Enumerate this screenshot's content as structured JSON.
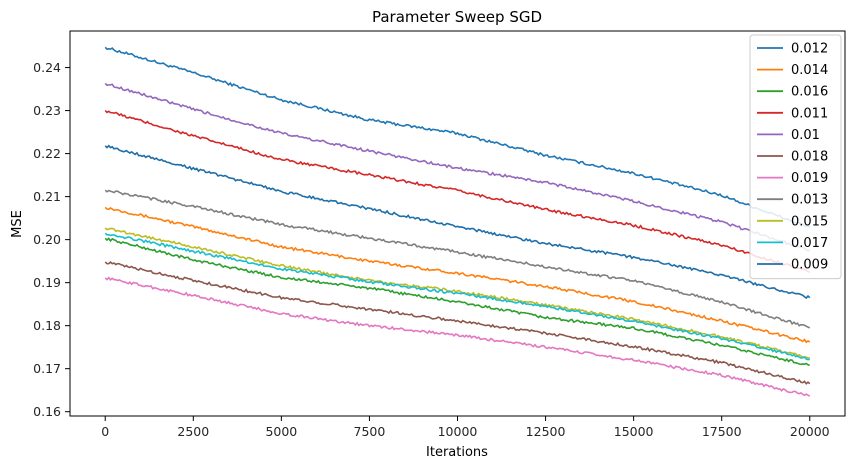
{
  "chart_data": {
    "type": "line",
    "title": "Parameter Sweep SGD",
    "xlabel": "Iterations",
    "ylabel": "MSE",
    "xlim": [
      -1000,
      21000
    ],
    "ylim": [
      0.159,
      0.2485
    ],
    "x_ticks": [
      "0",
      "2500",
      "5000",
      "7500",
      "10000",
      "12500",
      "15000",
      "17500",
      "20000"
    ],
    "y_ticks": [
      "0.16",
      "0.17",
      "0.18",
      "0.19",
      "0.20",
      "0.21",
      "0.22",
      "0.23",
      "0.24"
    ],
    "x": [
      0,
      2500,
      5000,
      7500,
      10000,
      12500,
      15000,
      17500,
      20000
    ],
    "legend_position": "upper right",
    "series": [
      {
        "name": "0.012",
        "color": "#1f77b4",
        "values": [
          0.2447,
          0.2388,
          0.2325,
          0.2278,
          0.2247,
          0.2196,
          0.2154,
          0.2103,
          0.2028
        ]
      },
      {
        "name": "0.014",
        "color": "#ff7f0e",
        "values": [
          0.2075,
          0.203,
          0.1983,
          0.195,
          0.1922,
          0.1891,
          0.1856,
          0.1811,
          0.1762
        ]
      },
      {
        "name": "0.016",
        "color": "#2ca02c",
        "values": [
          0.2003,
          0.1953,
          0.1912,
          0.1887,
          0.1855,
          0.1819,
          0.1794,
          0.1754,
          0.1708
        ]
      },
      {
        "name": "0.011",
        "color": "#d62728",
        "values": [
          0.23,
          0.2241,
          0.2186,
          0.215,
          0.2114,
          0.207,
          0.2033,
          0.1987,
          0.1925
        ]
      },
      {
        "name": "0.01",
        "color": "#9467bd",
        "values": [
          0.2363,
          0.2303,
          0.2247,
          0.2206,
          0.2166,
          0.2133,
          0.2089,
          0.2041,
          0.1975
        ]
      },
      {
        "name": "0.018",
        "color": "#8c564b",
        "values": [
          0.1948,
          0.1905,
          0.1865,
          0.1838,
          0.1811,
          0.1783,
          0.1751,
          0.1714,
          0.1665
        ]
      },
      {
        "name": "0.019",
        "color": "#e377c2",
        "values": [
          0.1911,
          0.187,
          0.1828,
          0.18,
          0.1778,
          0.175,
          0.172,
          0.1685,
          0.1636
        ]
      },
      {
        "name": "0.013",
        "color": "#7f7f7f",
        "values": [
          0.2115,
          0.2077,
          0.2035,
          0.2003,
          0.1971,
          0.1937,
          0.1904,
          0.1855,
          0.1795
        ]
      },
      {
        "name": "0.015",
        "color": "#bcbd22",
        "values": [
          0.2027,
          0.1983,
          0.1939,
          0.1905,
          0.188,
          0.1848,
          0.1815,
          0.1774,
          0.1725
        ]
      },
      {
        "name": "0.017",
        "color": "#17becf",
        "values": [
          0.2015,
          0.1973,
          0.1932,
          0.1902,
          0.1875,
          0.1845,
          0.181,
          0.177,
          0.1722
        ]
      },
      {
        "name": "0.009",
        "color": "#1f6fa8",
        "values": [
          0.2218,
          0.2165,
          0.2112,
          0.2072,
          0.203,
          0.1991,
          0.1959,
          0.1917,
          0.1865
        ]
      }
    ]
  }
}
